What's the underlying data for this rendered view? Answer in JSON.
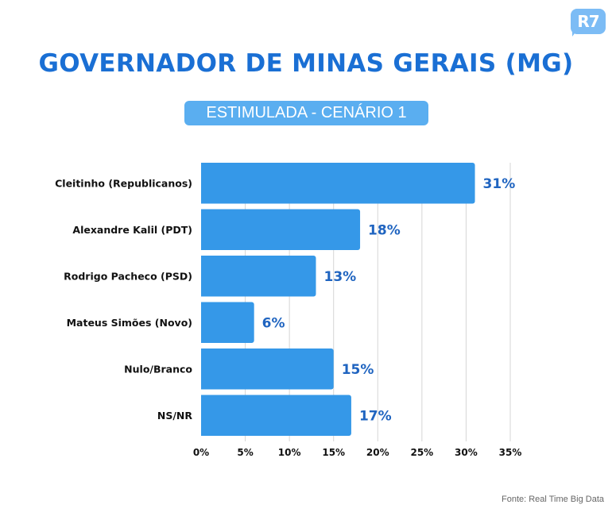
{
  "logo": {
    "text": "R7",
    "color": "#7cbcf5"
  },
  "header": {
    "title": "GOVERNADOR DE MINAS GERAIS (MG)",
    "subtitle": "ESTIMULADA - CENÁRIO 1"
  },
  "source": "Fonte: Real Time Big Data",
  "colors": {
    "bar": "#3598e8",
    "title": "#1a6fd4",
    "value_label": "#1f64c0",
    "grid": "#d6d6d6"
  },
  "chart_data": {
    "type": "bar",
    "orientation": "horizontal",
    "title": "GOVERNADOR DE MINAS GERAIS (MG)",
    "subtitle": "ESTIMULADA - CENÁRIO 1",
    "categories": [
      "Cleitinho (Republicanos)",
      "Alexandre Kalil (PDT)",
      "Rodrigo Pacheco (PSD)",
      "Mateus Simões (Novo)",
      "Nulo/Branco",
      "NS/NR"
    ],
    "values": [
      31,
      18,
      13,
      6,
      15,
      17
    ],
    "value_labels": [
      "31%",
      "18%",
      "13%",
      "6%",
      "15%",
      "17%"
    ],
    "xlabel": "",
    "ylabel": "",
    "xlim": [
      0,
      35
    ],
    "xticks": [
      0,
      5,
      10,
      15,
      20,
      25,
      30,
      35
    ],
    "xtick_labels": [
      "0%",
      "5%",
      "10%",
      "15%",
      "20%",
      "25%",
      "30%",
      "35%"
    ],
    "grid": "vertical",
    "legend": "none"
  }
}
